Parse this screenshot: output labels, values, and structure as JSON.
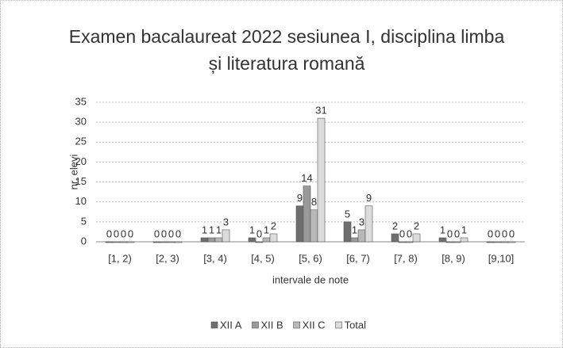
{
  "chart_data": {
    "type": "bar",
    "title": "Examen bacalaureat 2022 sesiunea I, disciplina limba și literatura romană",
    "x_label": "intervale de note",
    "y_label": "nr. elevi",
    "categories": [
      "[1, 2)",
      "[2, 3)",
      "[3, 4)",
      "[4, 5)",
      "[5, 6)",
      "[6, 7)",
      "[7, 8)",
      "[8, 9)",
      "[9,10]"
    ],
    "series": [
      {
        "name": "XII A",
        "color": "#6e6e6e",
        "values": [
          0,
          0,
          1,
          1,
          9,
          5,
          2,
          1,
          0
        ]
      },
      {
        "name": "XII B",
        "color": "#9a9a9a",
        "values": [
          0,
          0,
          1,
          0,
          14,
          1,
          0,
          0,
          0
        ]
      },
      {
        "name": "XII C",
        "color": "#b8b8b8",
        "values": [
          0,
          0,
          1,
          1,
          8,
          3,
          0,
          0,
          0
        ]
      },
      {
        "name": "Total",
        "color": "#dcdcdc",
        "values": [
          0,
          0,
          3,
          2,
          31,
          9,
          2,
          1,
          0
        ]
      }
    ],
    "ylim": [
      0,
      35
    ],
    "yticks": [
      0,
      5,
      10,
      15,
      20,
      25,
      30,
      35
    ],
    "grid": true,
    "legend": "bottom"
  }
}
